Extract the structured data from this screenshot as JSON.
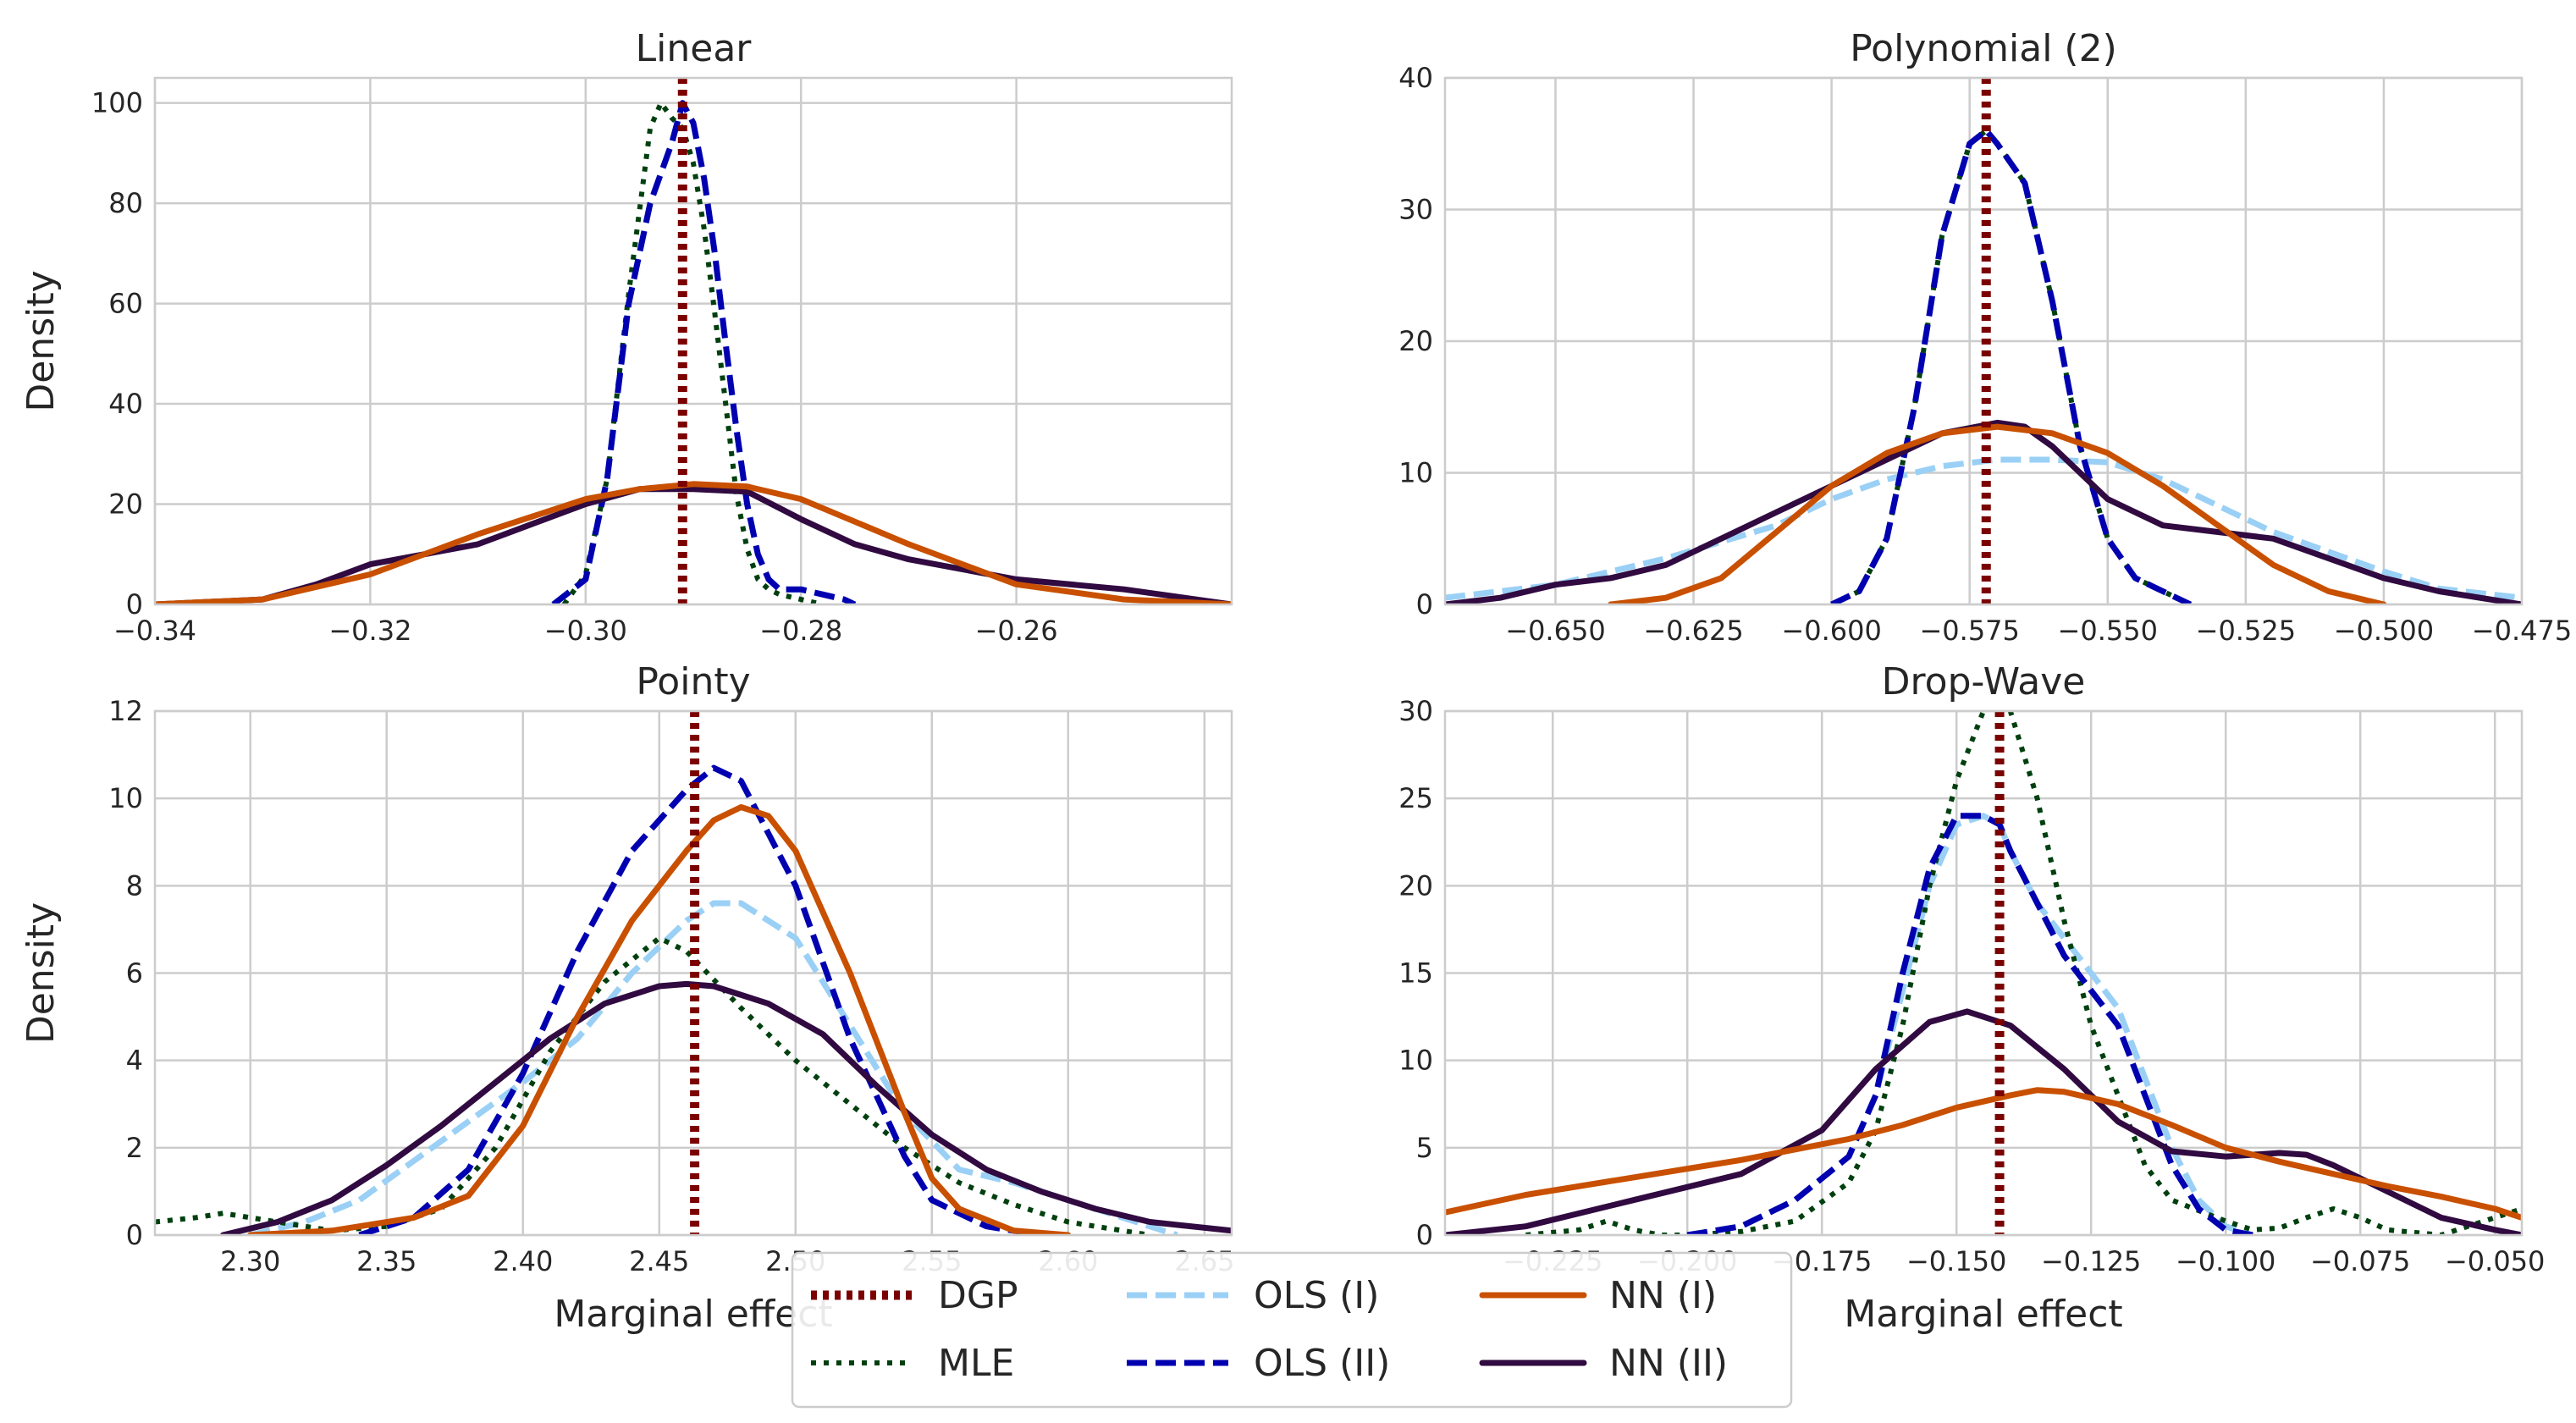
{
  "colors": {
    "DGP": "#7b0000",
    "MLE": "#00400f",
    "OLS (I)": "#9ad0f5",
    "OLS (II)": "#0000b0",
    "NN (I)": "#c85000",
    "NN (II)": "#300a40",
    "grid": "#cccccc",
    "frame": "#cccccc"
  },
  "legend": {
    "entries": [
      {
        "name": "DGP",
        "style": "dotted-thick"
      },
      {
        "name": "MLE",
        "style": "dotted"
      },
      {
        "name": "OLS (I)",
        "style": "dashed"
      },
      {
        "name": "OLS (II)",
        "style": "dashed"
      },
      {
        "name": "NN (I)",
        "style": "solid"
      },
      {
        "name": "NN (II)",
        "style": "solid"
      }
    ],
    "placement": "bottom-center"
  },
  "chart_data": [
    {
      "type": "line",
      "title": "Linear",
      "xlabel": "",
      "ylabel": "Density",
      "xlim": [
        -0.34,
        -0.24
      ],
      "ylim": [
        0,
        105
      ],
      "xticks": [
        -0.34,
        -0.32,
        -0.3,
        -0.28,
        -0.26
      ],
      "xtick_labels": [
        "−0.34",
        "−0.32",
        "−0.30",
        "−0.28",
        "−0.26"
      ],
      "yticks": [
        0,
        20,
        40,
        60,
        80,
        100
      ],
      "ytick_labels": [
        "0",
        "20",
        "40",
        "60",
        "80",
        "100"
      ],
      "grid": true,
      "dgp": -0.291,
      "series": [
        {
          "name": "MLE",
          "x": [
            -0.302,
            -0.3,
            -0.298,
            -0.296,
            -0.294,
            -0.293,
            -0.292,
            -0.291,
            -0.29,
            -0.289,
            -0.288,
            -0.287,
            -0.286,
            -0.285,
            -0.284,
            -0.283,
            -0.282,
            -0.28,
            -0.278
          ],
          "y": [
            0,
            6,
            25,
            62,
            95,
            100,
            97,
            95,
            88,
            75,
            58,
            40,
            22,
            11,
            5,
            3,
            2,
            1,
            0
          ]
        },
        {
          "name": "OLS (I)",
          "x": [
            -0.303,
            -0.3,
            -0.298,
            -0.296,
            -0.294,
            -0.292,
            -0.291,
            -0.29,
            -0.289,
            -0.288,
            -0.287,
            -0.286,
            -0.285,
            -0.284,
            -0.283,
            -0.282,
            -0.28,
            -0.278,
            -0.276,
            -0.275
          ],
          "y": [
            0,
            5,
            25,
            60,
            80,
            92,
            100,
            96,
            85,
            70,
            52,
            35,
            20,
            10,
            5,
            3,
            3,
            2,
            1,
            0
          ]
        },
        {
          "name": "OLS (II)",
          "x": [
            -0.303,
            -0.3,
            -0.298,
            -0.296,
            -0.294,
            -0.292,
            -0.291,
            -0.29,
            -0.289,
            -0.288,
            -0.287,
            -0.286,
            -0.285,
            -0.284,
            -0.283,
            -0.282,
            -0.28,
            -0.278,
            -0.276,
            -0.275
          ],
          "y": [
            0,
            5,
            25,
            60,
            80,
            92,
            100,
            96,
            85,
            70,
            52,
            35,
            20,
            10,
            5,
            3,
            3,
            2,
            1,
            0
          ]
        },
        {
          "name": "NN (I)",
          "x": [
            -0.34,
            -0.33,
            -0.32,
            -0.31,
            -0.3,
            -0.295,
            -0.29,
            -0.285,
            -0.28,
            -0.27,
            -0.26,
            -0.25,
            -0.24
          ],
          "y": [
            0,
            1,
            6,
            14,
            21,
            23,
            24,
            23.5,
            21,
            12,
            4,
            1,
            0
          ]
        },
        {
          "name": "NN (II)",
          "x": [
            -0.34,
            -0.33,
            -0.325,
            -0.32,
            -0.31,
            -0.3,
            -0.295,
            -0.29,
            -0.285,
            -0.28,
            -0.275,
            -0.27,
            -0.26,
            -0.25,
            -0.24
          ],
          "y": [
            0,
            1,
            4,
            8,
            12,
            20,
            23,
            23,
            22.5,
            17,
            12,
            9,
            5,
            3,
            0
          ]
        }
      ]
    },
    {
      "type": "line",
      "title": "Polynomial (2)",
      "xlabel": "",
      "ylabel": "",
      "xlim": [
        -0.67,
        -0.475
      ],
      "ylim": [
        0,
        40
      ],
      "xticks": [
        -0.65,
        -0.625,
        -0.6,
        -0.575,
        -0.55,
        -0.525,
        -0.5,
        -0.475
      ],
      "xtick_labels": [
        "−0.650",
        "−0.625",
        "−0.600",
        "−0.575",
        "−0.550",
        "−0.525",
        "−0.500",
        "−0.475"
      ],
      "yticks": [
        0,
        10,
        20,
        30,
        40
      ],
      "ytick_labels": [
        "0",
        "10",
        "20",
        "30",
        "40"
      ],
      "grid": true,
      "dgp": -0.572,
      "series": [
        {
          "name": "MLE",
          "x": [
            -0.6,
            -0.595,
            -0.59,
            -0.585,
            -0.58,
            -0.575,
            -0.572,
            -0.57,
            -0.565,
            -0.56,
            -0.555,
            -0.55,
            -0.545,
            -0.54,
            -0.535
          ],
          "y": [
            0,
            1,
            5,
            15,
            28,
            35,
            36,
            35,
            32,
            23,
            12,
            5,
            2,
            1,
            0
          ]
        },
        {
          "name": "OLS (I)",
          "x": [
            -0.67,
            -0.65,
            -0.63,
            -0.61,
            -0.6,
            -0.59,
            -0.58,
            -0.57,
            -0.56,
            -0.55,
            -0.54,
            -0.53,
            -0.52,
            -0.51,
            -0.5,
            -0.49,
            -0.475
          ],
          "y": [
            0.5,
            1.5,
            3.5,
            6,
            8,
            9.5,
            10.5,
            11,
            11,
            10.8,
            9.5,
            7.5,
            5.5,
            4,
            2.5,
            1.2,
            0.5
          ]
        },
        {
          "name": "OLS (II)",
          "x": [
            -0.6,
            -0.595,
            -0.59,
            -0.585,
            -0.58,
            -0.575,
            -0.572,
            -0.57,
            -0.565,
            -0.56,
            -0.555,
            -0.55,
            -0.545,
            -0.54,
            -0.535
          ],
          "y": [
            0,
            1,
            5,
            15,
            28,
            35,
            36,
            35,
            32,
            23,
            12,
            5,
            2,
            1,
            0
          ]
        },
        {
          "name": "NN (I)",
          "x": [
            -0.64,
            -0.63,
            -0.62,
            -0.61,
            -0.6,
            -0.59,
            -0.58,
            -0.57,
            -0.56,
            -0.55,
            -0.54,
            -0.53,
            -0.52,
            -0.51,
            -0.5
          ],
          "y": [
            0,
            0.5,
            2,
            5.5,
            9,
            11.5,
            13,
            13.5,
            13,
            11.5,
            9,
            6,
            3,
            1,
            0
          ]
        },
        {
          "name": "NN (II)",
          "x": [
            -0.67,
            -0.66,
            -0.65,
            -0.64,
            -0.63,
            -0.62,
            -0.61,
            -0.6,
            -0.59,
            -0.58,
            -0.57,
            -0.565,
            -0.56,
            -0.55,
            -0.54,
            -0.53,
            -0.52,
            -0.51,
            -0.5,
            -0.49,
            -0.475
          ],
          "y": [
            0,
            0.5,
            1.5,
            2,
            3,
            5,
            7,
            9,
            11,
            13,
            13.8,
            13.5,
            12,
            8,
            6,
            5.5,
            5,
            3.5,
            2,
            1,
            0
          ]
        }
      ]
    },
    {
      "type": "line",
      "title": "Pointy",
      "xlabel": "Marginal effect",
      "ylabel": "Density",
      "xlim": [
        2.265,
        2.66
      ],
      "ylim": [
        0,
        12
      ],
      "xticks": [
        2.3,
        2.35,
        2.4,
        2.45,
        2.5,
        2.55,
        2.6,
        2.65
      ],
      "xtick_labels": [
        "2.30",
        "2.35",
        "2.40",
        "2.45",
        "2.50",
        "2.55",
        "2.60",
        "2.65"
      ],
      "yticks": [
        0,
        2,
        4,
        6,
        8,
        10,
        12
      ],
      "ytick_labels": [
        "0",
        "2",
        "4",
        "6",
        "8",
        "10",
        "12"
      ],
      "grid": true,
      "dgp": 2.463,
      "series": [
        {
          "name": "MLE",
          "x": [
            2.265,
            2.28,
            2.29,
            2.3,
            2.31,
            2.33,
            2.35,
            2.37,
            2.39,
            2.41,
            2.43,
            2.45,
            2.46,
            2.48,
            2.5,
            2.52,
            2.54,
            2.56,
            2.58,
            2.6,
            2.62,
            2.63
          ],
          "y": [
            0.3,
            0.4,
            0.5,
            0.4,
            0.3,
            0.1,
            0.2,
            0.6,
            2,
            4.2,
            5.8,
            6.8,
            6.5,
            5.2,
            4,
            3,
            2,
            1.2,
            0.7,
            0.3,
            0.1,
            0
          ]
        },
        {
          "name": "OLS (I)",
          "x": [
            2.3,
            2.32,
            2.34,
            2.36,
            2.38,
            2.4,
            2.42,
            2.44,
            2.46,
            2.47,
            2.48,
            2.5,
            2.52,
            2.54,
            2.56,
            2.58,
            2.6,
            2.62,
            2.64
          ],
          "y": [
            0,
            0.3,
            0.8,
            1.7,
            2.6,
            3.5,
            4.5,
            6,
            7.2,
            7.6,
            7.6,
            6.8,
            4.8,
            2.8,
            1.5,
            1.2,
            0.8,
            0.4,
            0
          ]
        },
        {
          "name": "OLS (II)",
          "x": [
            2.34,
            2.36,
            2.38,
            2.4,
            2.42,
            2.44,
            2.46,
            2.47,
            2.48,
            2.5,
            2.52,
            2.54,
            2.55,
            2.57,
            2.59
          ],
          "y": [
            0,
            0.4,
            1.5,
            3.7,
            6.5,
            8.8,
            10.2,
            10.7,
            10.4,
            8,
            4.5,
            1.8,
            0.8,
            0.2,
            0
          ]
        },
        {
          "name": "NN (I)",
          "x": [
            2.3,
            2.33,
            2.36,
            2.38,
            2.4,
            2.42,
            2.44,
            2.46,
            2.47,
            2.48,
            2.49,
            2.5,
            2.52,
            2.54,
            2.55,
            2.56,
            2.58,
            2.6
          ],
          "y": [
            0,
            0.1,
            0.4,
            0.9,
            2.5,
            5,
            7.2,
            8.8,
            9.5,
            9.8,
            9.6,
            8.8,
            6,
            2.8,
            1.3,
            0.6,
            0.1,
            0
          ]
        },
        {
          "name": "NN (II)",
          "x": [
            2.29,
            2.31,
            2.33,
            2.35,
            2.37,
            2.39,
            2.41,
            2.43,
            2.45,
            2.46,
            2.47,
            2.49,
            2.51,
            2.53,
            2.55,
            2.57,
            2.59,
            2.61,
            2.63,
            2.66
          ],
          "y": [
            0,
            0.3,
            0.8,
            1.6,
            2.5,
            3.5,
            4.5,
            5.3,
            5.7,
            5.75,
            5.7,
            5.3,
            4.6,
            3.4,
            2.3,
            1.5,
            1,
            0.6,
            0.3,
            0.1
          ]
        }
      ]
    },
    {
      "type": "line",
      "title": "Drop-Wave",
      "xlabel": "Marginal effect",
      "ylabel": "",
      "xlim": [
        -0.245,
        -0.045
      ],
      "ylim": [
        0,
        30
      ],
      "xticks": [
        -0.225,
        -0.2,
        -0.175,
        -0.15,
        -0.125,
        -0.1,
        -0.075,
        -0.05
      ],
      "xtick_labels": [
        "−0.225",
        "−0.200",
        "−0.175",
        "−0.150",
        "−0.125",
        "−0.100",
        "−0.075",
        "−0.050"
      ],
      "yticks": [
        0,
        5,
        10,
        15,
        20,
        25,
        30
      ],
      "ytick_labels": [
        "0",
        "5",
        "10",
        "15",
        "20",
        "25",
        "30"
      ],
      "grid": true,
      "dgp": -0.142,
      "series": [
        {
          "name": "MLE",
          "x": [
            -0.23,
            -0.22,
            -0.215,
            -0.21,
            -0.205,
            -0.2,
            -0.19,
            -0.18,
            -0.17,
            -0.165,
            -0.16,
            -0.155,
            -0.15,
            -0.145,
            -0.142,
            -0.14,
            -0.135,
            -0.13,
            -0.125,
            -0.12,
            -0.115,
            -0.11,
            -0.1,
            -0.095,
            -0.09,
            -0.085,
            -0.08,
            -0.075,
            -0.07,
            -0.06,
            -0.05,
            -0.045
          ],
          "y": [
            0,
            0.3,
            0.8,
            0.3,
            0,
            0,
            0.2,
            0.8,
            3,
            6,
            12,
            20,
            26,
            30,
            31,
            30,
            25,
            18,
            12,
            8,
            4,
            2,
            0.8,
            0.3,
            0.4,
            1,
            1.5,
            1,
            0.3,
            0,
            1,
            1.5
          ]
        },
        {
          "name": "OLS (I)",
          "x": [
            -0.2,
            -0.19,
            -0.18,
            -0.17,
            -0.165,
            -0.16,
            -0.155,
            -0.15,
            -0.145,
            -0.142,
            -0.14,
            -0.135,
            -0.13,
            -0.125,
            -0.12,
            -0.115,
            -0.11,
            -0.105,
            -0.1,
            -0.095
          ],
          "y": [
            0,
            0.5,
            2,
            4.5,
            8,
            14,
            20,
            23.5,
            24,
            23.5,
            22,
            19,
            17,
            15,
            13,
            9,
            5,
            2,
            0.5,
            0
          ]
        },
        {
          "name": "OLS (II)",
          "x": [
            -0.2,
            -0.19,
            -0.18,
            -0.17,
            -0.165,
            -0.16,
            -0.155,
            -0.15,
            -0.145,
            -0.142,
            -0.14,
            -0.135,
            -0.13,
            -0.125,
            -0.12,
            -0.115,
            -0.11,
            -0.105,
            -0.1,
            -0.095
          ],
          "y": [
            0,
            0.5,
            2,
            4.5,
            8,
            15,
            21,
            24,
            24,
            23.5,
            22,
            19,
            16,
            14,
            12,
            8,
            4,
            1.5,
            0.3,
            0
          ]
        },
        {
          "name": "NN (I)",
          "x": [
            -0.245,
            -0.23,
            -0.21,
            -0.19,
            -0.17,
            -0.16,
            -0.15,
            -0.14,
            -0.135,
            -0.13,
            -0.12,
            -0.11,
            -0.1,
            -0.09,
            -0.08,
            -0.07,
            -0.06,
            -0.05,
            -0.045
          ],
          "y": [
            1.3,
            2.3,
            3.3,
            4.3,
            5.5,
            6.3,
            7.3,
            8,
            8.3,
            8.2,
            7.5,
            6.3,
            5,
            4.2,
            3.5,
            2.8,
            2.2,
            1.5,
            1
          ]
        },
        {
          "name": "NN (II)",
          "x": [
            -0.245,
            -0.23,
            -0.21,
            -0.19,
            -0.175,
            -0.165,
            -0.155,
            -0.148,
            -0.14,
            -0.13,
            -0.12,
            -0.11,
            -0.1,
            -0.09,
            -0.085,
            -0.08,
            -0.07,
            -0.06,
            -0.05,
            -0.045
          ],
          "y": [
            0,
            0.5,
            2,
            3.5,
            6,
            9.5,
            12.2,
            12.8,
            12,
            9.5,
            6.5,
            4.8,
            4.5,
            4.7,
            4.6,
            4,
            2.5,
            1,
            0.3,
            0
          ]
        }
      ]
    }
  ]
}
